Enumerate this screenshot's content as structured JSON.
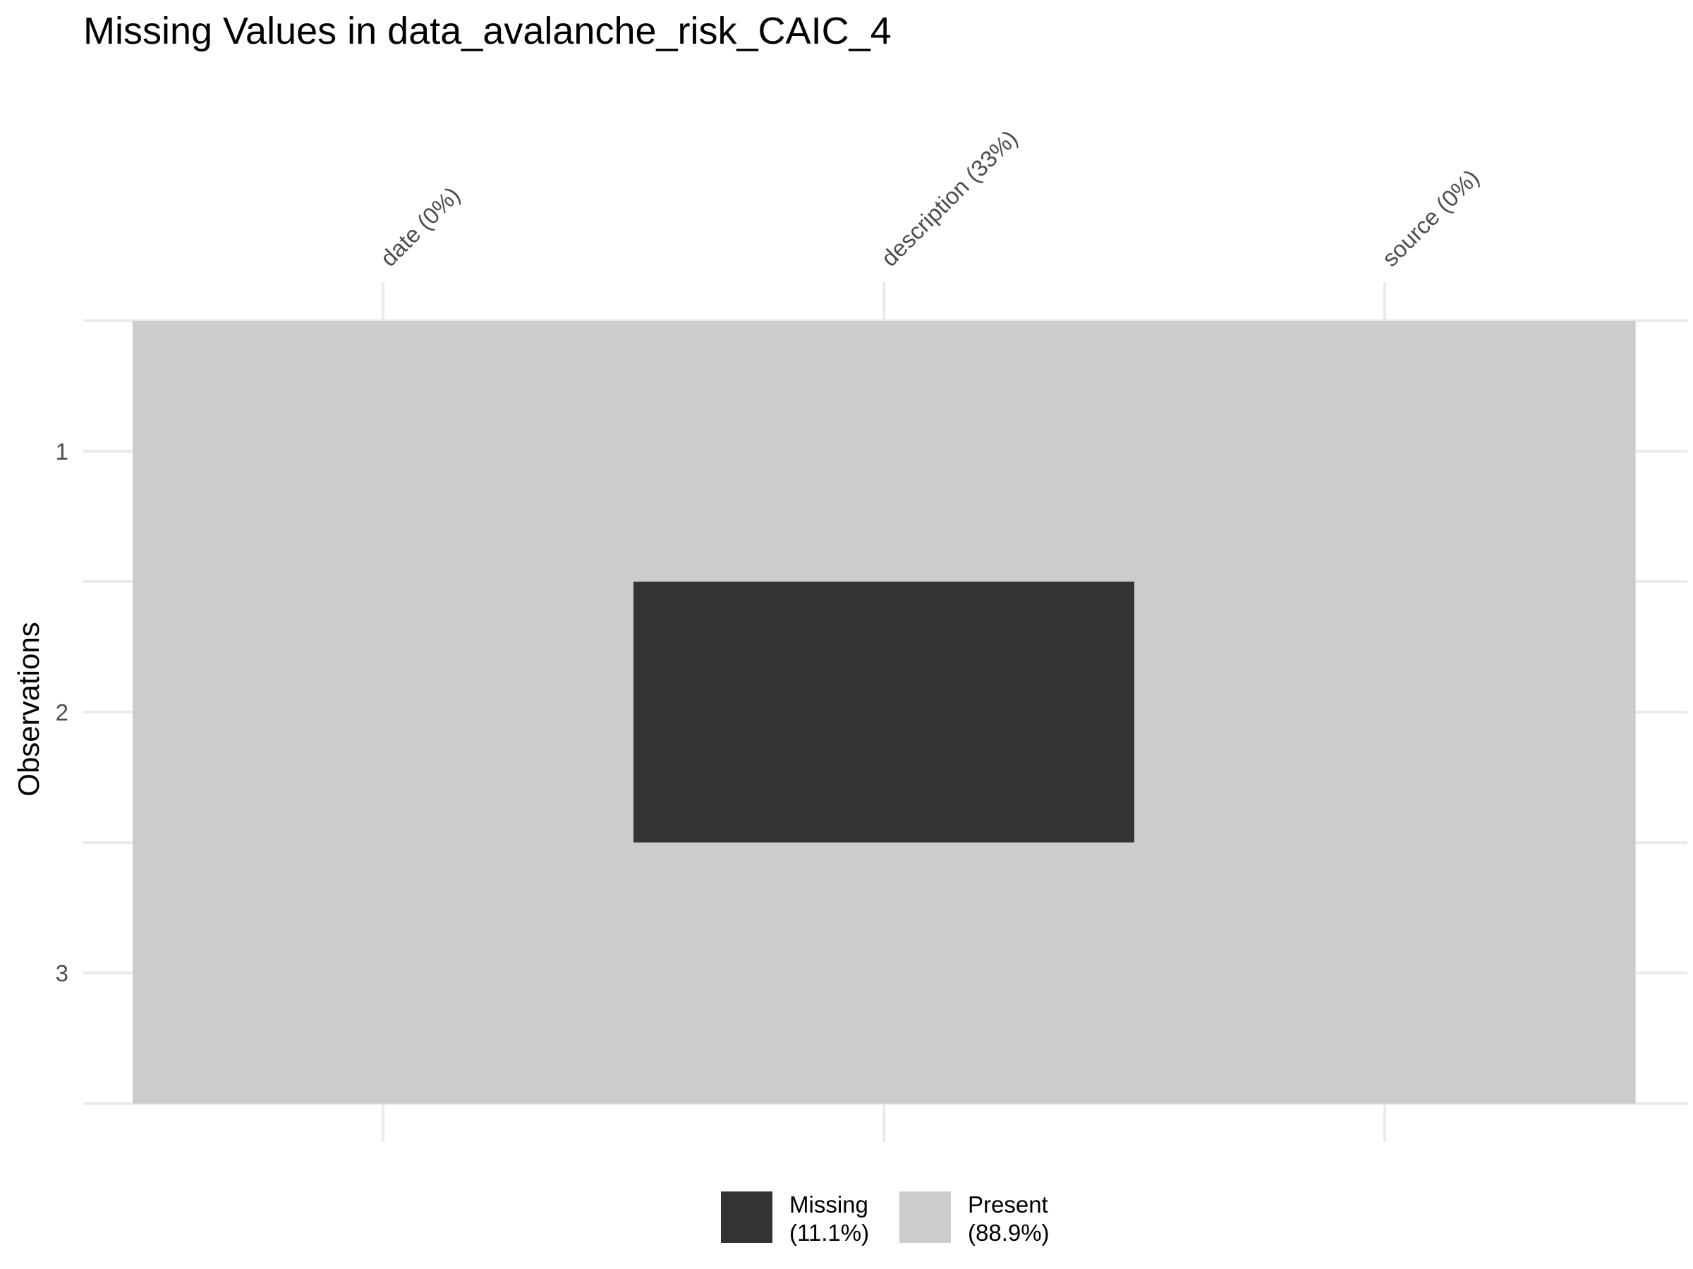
{
  "chart_data": {
    "type": "heatmap",
    "title": "Missing Values in data_avalanche_risk_CAIC_4",
    "xlabel": "",
    "ylabel": "Observations",
    "columns": [
      "date (0%)",
      "description (33%)",
      "source (0%)"
    ],
    "rows": [
      "1",
      "2",
      "3"
    ],
    "missing_matrix": [
      [
        false,
        false,
        false
      ],
      [
        false,
        true,
        false
      ],
      [
        false,
        false,
        false
      ]
    ],
    "legend": [
      {
        "key": "missing",
        "label_line1": "Missing",
        "label_line2": "(11.1%)",
        "color": "#333333"
      },
      {
        "key": "present",
        "label_line1": "Present",
        "label_line2": "(88.9%)",
        "color": "#cccccc"
      }
    ],
    "grid": true,
    "x_axis_position": "top",
    "legend_position": "bottom"
  }
}
